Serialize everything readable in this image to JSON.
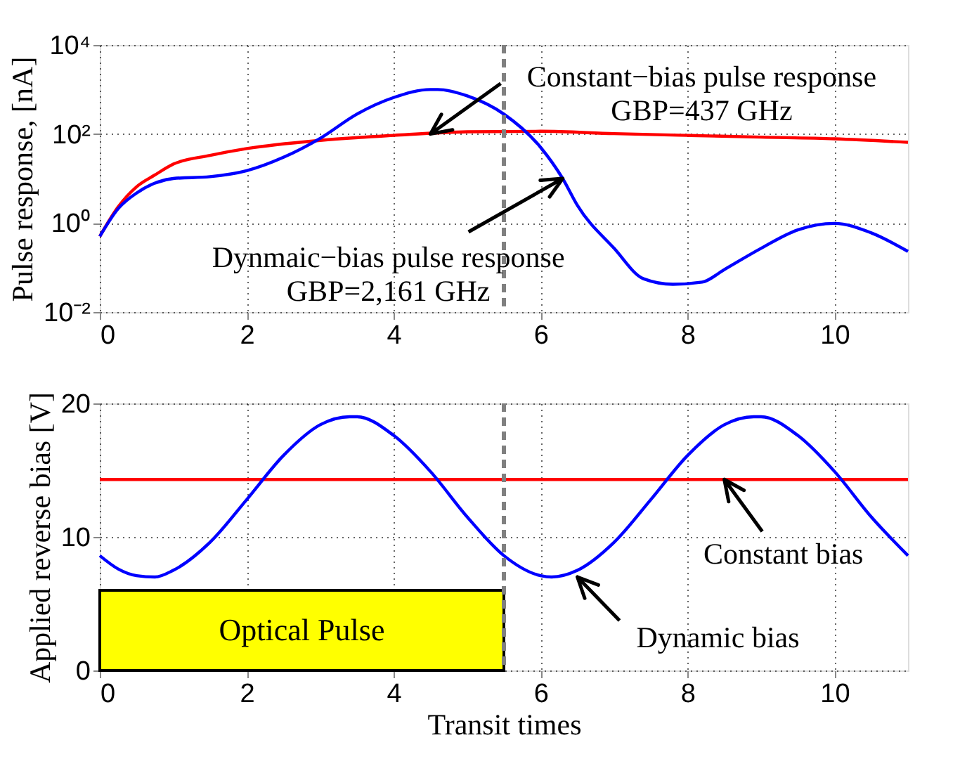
{
  "chart_data": [
    {
      "type": "line",
      "ylabel": "Pulse response, [nA]",
      "log": true,
      "grid": true,
      "xlim": [
        0,
        11
      ],
      "xticks": [
        0,
        2,
        4,
        6,
        8,
        10
      ],
      "ylim": [
        0.01,
        10000
      ],
      "yticks": [
        {
          "value": 0.01,
          "label": "10⁻²"
        },
        {
          "value": 1,
          "label": "10⁰"
        },
        {
          "value": 100,
          "label": "10²"
        },
        {
          "value": 10000,
          "label": "10⁴"
        }
      ],
      "series": [
        {
          "color": "#ff0000",
          "x": [
            0,
            0.25,
            0.5,
            0.75,
            1,
            1.5,
            2,
            3,
            4,
            5,
            6,
            7,
            8,
            9,
            10,
            11
          ],
          "values": [
            0.5,
            2.3,
            6.5,
            12,
            21,
            33,
            47,
            72,
            93,
            112,
            115,
            102,
            93,
            85,
            78,
            65
          ]
        },
        {
          "color": "#0000ff",
          "x": [
            0,
            0.25,
            0.5,
            1,
            1.5,
            2,
            2.5,
            3,
            3.5,
            4,
            4.5,
            4.6,
            5,
            5.5,
            6,
            6.3,
            6.5,
            7,
            7.4,
            7.8,
            8.2,
            8.5,
            9,
            9.5,
            10,
            10.5,
            11
          ],
          "values": [
            0.5,
            2.1,
            4.7,
            10,
            11,
            15,
            30,
            80,
            280,
            660,
            1000,
            1000,
            720,
            280,
            50,
            10,
            2.5,
            0.27,
            0.056,
            0.042,
            0.047,
            0.09,
            0.27,
            0.7,
            0.98,
            0.6,
            0.23
          ]
        }
      ],
      "ref_lines": [
        {
          "axis": "x",
          "value": 5.5,
          "color": "#808080",
          "line_style": "dashed"
        }
      ],
      "annotations": [
        {
          "text": "Constant−bias pulse response\nGBP=437 GHz",
          "x": 4.5,
          "y": 100
        },
        {
          "text": "Dynmaic−bias pulse response\nGBP=2,161 GHz",
          "x": 6.3,
          "y": 10
        }
      ]
    },
    {
      "type": "line",
      "xlabel": "Transit times",
      "ylabel": "Applied reverse bias [V]",
      "grid": true,
      "xlim": [
        0,
        11
      ],
      "xticks": [
        0,
        2,
        4,
        6,
        8,
        10
      ],
      "ylim": [
        0,
        20
      ],
      "yticks": [
        0,
        10,
        20
      ],
      "series": [
        {
          "type": "area",
          "name": "Optical Pulse",
          "color": "#ffff00",
          "x": [
            0,
            5.5
          ],
          "values": [
            6,
            6
          ]
        },
        {
          "color": "#ff0000",
          "x": [
            0,
            11
          ],
          "values": [
            14.3,
            14.3
          ]
        },
        {
          "color": "#0000ff",
          "x": [
            0,
            0.25,
            0.5,
            0.75,
            1,
            1.5,
            2,
            2.5,
            3,
            3.4,
            3.5,
            4,
            4.5,
            5,
            5.5,
            6,
            6.15,
            6.5,
            7,
            7.5,
            8,
            8.5,
            8.9,
            9,
            9.5,
            10,
            10.5,
            11
          ],
          "values": [
            8.6,
            7.6,
            7.1,
            7.0,
            7.5,
            9.6,
            12.8,
            16.1,
            18.4,
            19,
            19,
            17.6,
            14.9,
            11.5,
            8.6,
            7.1,
            7.0,
            7.5,
            9.6,
            12.8,
            16.1,
            18.4,
            19,
            19,
            17.6,
            14.9,
            11.5,
            8.6
          ]
        }
      ],
      "ref_lines": [
        {
          "axis": "x",
          "value": 5.5,
          "color": "#808080",
          "line_style": "dashed"
        }
      ],
      "annotations": [
        {
          "text": "Constant bias",
          "x": 8.5,
          "y": 14.3
        },
        {
          "text": "Dynamic bias",
          "x": 6.5,
          "y": 7.0
        }
      ]
    }
  ]
}
